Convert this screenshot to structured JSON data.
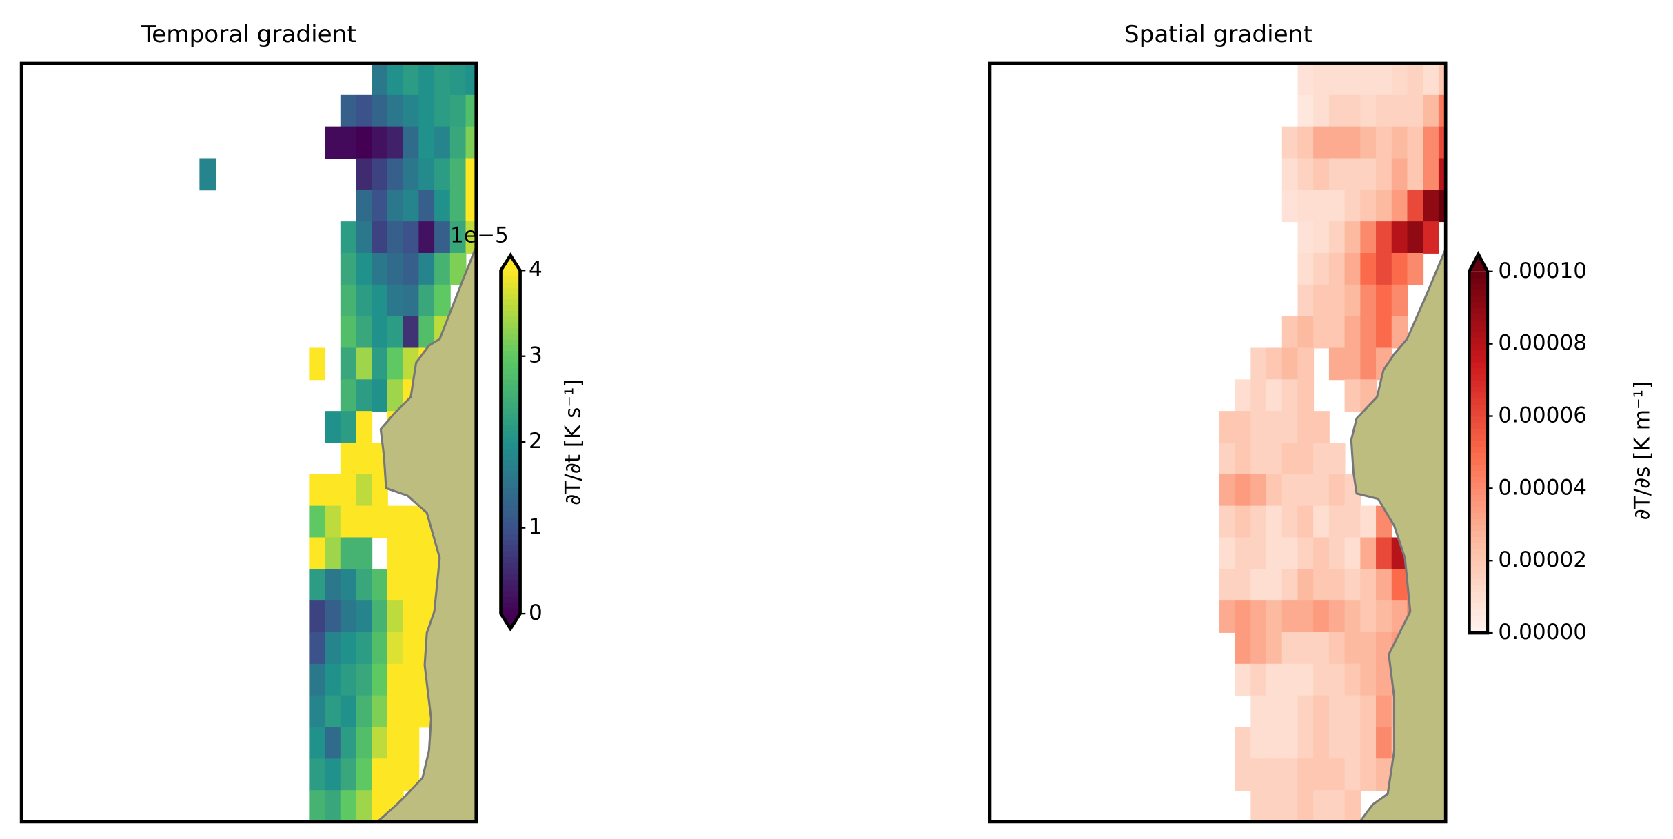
{
  "chart_data": [
    {
      "type": "heatmap",
      "title": "Temporal gradient",
      "colormap": "viridis",
      "colorbar_label": "∂T/∂t [K s⁻¹]",
      "offset_text": "1e−5",
      "vlim": [
        0,
        4
      ],
      "ticks": [
        0,
        1,
        2,
        3,
        4
      ],
      "extend": "both",
      "values": [
        [
          null,
          null,
          null,
          null,
          null,
          null,
          null,
          null,
          null,
          null,
          null,
          1.6,
          2.0,
          2.2,
          2.0,
          2.2,
          2.1,
          2.0
        ],
        [
          null,
          null,
          null,
          null,
          null,
          null,
          null,
          null,
          null,
          1.2,
          1.0,
          1.3,
          1.6,
          1.8,
          2.0,
          2.2,
          2.3,
          2.8
        ],
        [
          null,
          null,
          null,
          null,
          null,
          null,
          null,
          null,
          0.1,
          0.1,
          0.0,
          0.2,
          0.4,
          1.4,
          2.0,
          1.8,
          2.4,
          3.2
        ],
        [
          1.8,
          null,
          null,
          null,
          null,
          null,
          null,
          null,
          null,
          null,
          0.5,
          0.8,
          1.2,
          1.6,
          1.9,
          2.2,
          2.6,
          4.0
        ],
        [
          null,
          null,
          null,
          null,
          null,
          null,
          null,
          null,
          null,
          null,
          1.4,
          1.0,
          1.6,
          1.8,
          1.2,
          2.0,
          2.6,
          4.0
        ],
        [
          null,
          null,
          null,
          null,
          null,
          null,
          null,
          null,
          null,
          2.2,
          1.6,
          0.8,
          1.2,
          1.0,
          0.2,
          1.2,
          2.4,
          3.6
        ],
        [
          null,
          null,
          null,
          null,
          null,
          null,
          null,
          null,
          null,
          2.4,
          2.0,
          1.6,
          1.4,
          1.2,
          1.8,
          2.6,
          3.2,
          null
        ],
        [
          null,
          null,
          null,
          null,
          null,
          null,
          null,
          null,
          null,
          2.6,
          2.2,
          2.0,
          1.6,
          1.5,
          2.4,
          3.0,
          null,
          null
        ],
        [
          null,
          null,
          null,
          null,
          null,
          null,
          null,
          null,
          null,
          2.8,
          2.4,
          2.0,
          2.2,
          0.6,
          2.8,
          3.6,
          null,
          null
        ],
        [
          null,
          null,
          null,
          null,
          null,
          null,
          null,
          4.0,
          null,
          2.4,
          3.4,
          2.2,
          3.0,
          3.6,
          4.0,
          null,
          null,
          null
        ],
        [
          null,
          null,
          null,
          null,
          null,
          null,
          null,
          null,
          null,
          2.6,
          2.2,
          2.0,
          3.4,
          4.0,
          null,
          null,
          null,
          null
        ],
        [
          null,
          null,
          null,
          null,
          null,
          null,
          null,
          null,
          2.0,
          2.2,
          4.0,
          null,
          4.0,
          null,
          null,
          null,
          null,
          null
        ],
        [
          null,
          null,
          null,
          null,
          null,
          null,
          null,
          null,
          null,
          4.0,
          4.0,
          4.0,
          null,
          null,
          null,
          null,
          null,
          null
        ],
        [
          null,
          null,
          null,
          null,
          null,
          null,
          null,
          4.0,
          4.0,
          4.0,
          3.6,
          4.0,
          null,
          null,
          null,
          null,
          null,
          null
        ],
        [
          null,
          null,
          null,
          null,
          null,
          null,
          null,
          3.0,
          3.6,
          4.0,
          4.0,
          4.0,
          4.0,
          4.0,
          4.0,
          4.0,
          null,
          null
        ],
        [
          null,
          null,
          null,
          null,
          null,
          null,
          null,
          4.0,
          3.4,
          2.6,
          2.6,
          null,
          4.0,
          4.0,
          4.0,
          4.0,
          null,
          null
        ],
        [
          null,
          null,
          null,
          null,
          null,
          null,
          null,
          2.2,
          1.6,
          1.8,
          2.4,
          2.8,
          4.0,
          4.0,
          4.0,
          4.0,
          null,
          null
        ],
        [
          null,
          null,
          null,
          null,
          null,
          null,
          null,
          0.8,
          1.2,
          1.6,
          1.8,
          2.6,
          3.6,
          4.0,
          4.0,
          4.0,
          null,
          null
        ],
        [
          null,
          null,
          null,
          null,
          null,
          null,
          null,
          1.0,
          1.8,
          2.0,
          2.2,
          2.8,
          3.8,
          4.0,
          4.0,
          null,
          null,
          null
        ],
        [
          null,
          null,
          null,
          null,
          null,
          null,
          null,
          1.6,
          2.0,
          2.2,
          2.4,
          3.0,
          4.0,
          4.0,
          4.0,
          null,
          null,
          null
        ],
        [
          null,
          null,
          null,
          null,
          null,
          null,
          null,
          1.8,
          2.2,
          2.0,
          2.6,
          3.2,
          4.0,
          4.0,
          4.0,
          null,
          null,
          null
        ],
        [
          null,
          null,
          null,
          null,
          null,
          null,
          null,
          2.0,
          1.4,
          2.2,
          2.8,
          3.6,
          4.0,
          4.0,
          null,
          null,
          null,
          null
        ],
        [
          null,
          null,
          null,
          null,
          null,
          null,
          null,
          2.2,
          2.0,
          2.4,
          3.0,
          4.0,
          4.0,
          4.0,
          null,
          null,
          null,
          null
        ],
        [
          null,
          null,
          null,
          null,
          null,
          null,
          null,
          2.6,
          2.4,
          3.0,
          3.4,
          4.0,
          4.0,
          null,
          null,
          null,
          null,
          null
        ]
      ]
    },
    {
      "type": "heatmap",
      "title": "Spatial gradient",
      "colormap": "reds",
      "colorbar_label": "∂T/∂s [K m⁻¹]",
      "vlim": [
        0,
        0.0001
      ],
      "ticks": [
        {
          "value": 0,
          "label": "0.00000"
        },
        {
          "value": 2e-05,
          "label": "0.00002"
        },
        {
          "value": 4e-05,
          "label": "0.00004"
        },
        {
          "value": 6e-05,
          "label": "0.00006"
        },
        {
          "value": 8e-05,
          "label": "0.00008"
        },
        {
          "value": 0.0001,
          "label": "0.00010"
        }
      ],
      "extend": "max",
      "values": [
        [
          null,
          null,
          null,
          null,
          null,
          8e-06,
          1e-05,
          1e-05,
          1e-05,
          1e-05,
          1e-05,
          1.2e-05,
          1.5e-05,
          1e-05,
          2e-05
        ],
        [
          null,
          null,
          null,
          null,
          null,
          6e-06,
          1e-05,
          1.5e-05,
          1.5e-05,
          1.2e-05,
          1.5e-05,
          1.5e-05,
          1.5e-05,
          2.5e-05,
          4.5e-05
        ],
        [
          null,
          null,
          null,
          null,
          1.5e-05,
          2e-05,
          3e-05,
          3e-05,
          3e-05,
          2.5e-05,
          2e-05,
          2.5e-05,
          2e-05,
          4e-05,
          6e-05
        ],
        [
          null,
          null,
          null,
          null,
          1e-05,
          1.5e-05,
          2e-05,
          1.5e-05,
          1.5e-05,
          1.5e-05,
          2e-05,
          3e-05,
          2e-05,
          4e-05,
          8e-05
        ],
        [
          null,
          null,
          null,
          null,
          8e-06,
          1e-05,
          1e-05,
          1e-05,
          1.5e-05,
          2e-05,
          2.5e-05,
          3.5e-05,
          6e-05,
          9e-05,
          0.0001
        ],
        [
          null,
          null,
          null,
          null,
          null,
          8e-06,
          1e-05,
          1.5e-05,
          2.5e-05,
          4e-05,
          6e-05,
          8e-05,
          9e-05,
          7e-05,
          null
        ],
        [
          null,
          null,
          null,
          null,
          null,
          1e-05,
          1.5e-05,
          2e-05,
          3e-05,
          5e-05,
          6e-05,
          5e-05,
          4e-05,
          null,
          null
        ],
        [
          null,
          null,
          null,
          null,
          null,
          1.5e-05,
          2e-05,
          2e-05,
          2.5e-05,
          4e-05,
          5e-05,
          4e-05,
          null,
          null,
          null
        ],
        [
          null,
          null,
          null,
          null,
          2e-05,
          2.5e-05,
          2e-05,
          2e-05,
          3e-05,
          4e-05,
          5e-05,
          3e-05,
          null,
          null,
          null
        ],
        [
          null,
          null,
          1.5e-05,
          2e-05,
          2.5e-05,
          2e-05,
          null,
          3e-05,
          3e-05,
          4e-05,
          3e-05,
          null,
          null,
          null,
          null
        ],
        [
          null,
          1e-05,
          1.5e-05,
          1e-05,
          1.5e-05,
          2e-05,
          null,
          null,
          2e-05,
          2.5e-05,
          null,
          null,
          null,
          null,
          null
        ],
        [
          2e-05,
          2e-05,
          1.5e-05,
          1.5e-05,
          1.5e-05,
          2e-05,
          2e-05,
          null,
          null,
          null,
          null,
          null,
          null,
          null,
          null
        ],
        [
          1.5e-05,
          2e-05,
          1.5e-05,
          1.5e-05,
          2e-05,
          2e-05,
          1.5e-05,
          1.5e-05,
          null,
          null,
          null,
          null,
          null,
          null,
          null
        ],
        [
          3e-05,
          3.5e-05,
          3e-05,
          2e-05,
          1.5e-05,
          1.5e-05,
          1.5e-05,
          2e-05,
          1.5e-05,
          null,
          null,
          null,
          null,
          null,
          null
        ],
        [
          1.5e-05,
          2e-05,
          1.5e-05,
          1e-05,
          1.5e-05,
          2e-05,
          1e-05,
          1.5e-05,
          1.5e-05,
          1e-05,
          4e-05,
          null,
          null,
          null,
          null
        ],
        [
          1e-05,
          1.5e-05,
          1.5e-05,
          1e-05,
          1e-05,
          1.5e-05,
          2e-05,
          1.5e-05,
          1e-05,
          3e-05,
          6e-05,
          8e-05,
          null,
          null,
          null
        ],
        [
          1.5e-05,
          1.5e-05,
          1e-05,
          1e-05,
          1.5e-05,
          2.5e-05,
          2e-05,
          2e-05,
          1.5e-05,
          2e-05,
          3e-05,
          5e-05,
          4.5e-05,
          null,
          null
        ],
        [
          3e-05,
          3.5e-05,
          3e-05,
          2.5e-05,
          3e-05,
          3e-05,
          3.5e-05,
          3e-05,
          2.5e-05,
          2e-05,
          2.5e-05,
          3e-05,
          4.5e-05,
          null,
          null
        ],
        [
          null,
          3.5e-05,
          3e-05,
          2.5e-05,
          1.5e-05,
          1.5e-05,
          1.5e-05,
          2e-05,
          2.5e-05,
          2.5e-05,
          3e-05,
          3.5e-05,
          5e-05,
          null,
          null
        ],
        [
          null,
          1e-05,
          1.5e-05,
          1e-05,
          1e-05,
          1e-05,
          1.5e-05,
          1.5e-05,
          2e-05,
          2.5e-05,
          3e-05,
          3e-05,
          null,
          null,
          null
        ],
        [
          null,
          null,
          1e-05,
          1e-05,
          1e-05,
          1.5e-05,
          2e-05,
          1.5e-05,
          1.5e-05,
          2e-05,
          3.5e-05,
          2.5e-05,
          null,
          null,
          null
        ],
        [
          null,
          1.5e-05,
          1e-05,
          1e-05,
          1e-05,
          1.5e-05,
          2e-05,
          1.5e-05,
          1.5e-05,
          2e-05,
          4e-05,
          2e-05,
          null,
          null,
          null
        ],
        [
          null,
          1.5e-05,
          1.5e-05,
          1.5e-05,
          1.5e-05,
          2e-05,
          2e-05,
          2e-05,
          1.5e-05,
          2e-05,
          2.5e-05,
          null,
          null,
          null,
          null
        ],
        [
          null,
          null,
          1.5e-05,
          1.5e-05,
          1.5e-05,
          2e-05,
          1.5e-05,
          1.5e-05,
          2e-05,
          null,
          null,
          null,
          null,
          null,
          null
        ]
      ]
    }
  ]
}
